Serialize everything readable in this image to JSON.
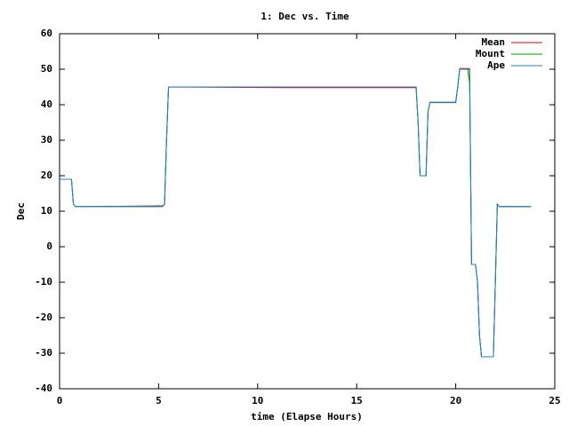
{
  "chart_data": {
    "type": "line",
    "title": "1: Dec vs. Time",
    "x_label": "time (Elapse Hours)",
    "y_label": "Dec",
    "x": [
      0,
      0.6,
      0.7,
      0.8,
      5.0,
      5.2,
      5.3,
      5.4,
      5.5,
      11.5,
      18.0,
      18.1,
      18.2,
      18.5,
      18.6,
      18.7,
      20.0,
      20.1,
      20.2,
      20.6,
      20.7,
      20.8,
      20.9,
      21.0,
      21.1,
      21.2,
      21.3,
      21.9,
      22.0,
      22.1,
      22.2,
      23.8
    ],
    "series": [
      {
        "name": "Mean",
        "color": "#e0000f",
        "values": [
          19,
          19,
          12,
          11.3,
          11.5,
          11.5,
          12,
          30,
          45,
          44.8,
          44.8,
          35,
          20,
          20,
          38,
          40.6,
          40.6,
          45,
          50.2,
          50.2,
          50.2,
          -5,
          -5,
          -5,
          -10,
          -25,
          -31,
          -31,
          -10,
          12,
          11.3,
          11.3
        ]
      },
      {
        "name": "Mount",
        "color": "#00a000",
        "values": [
          19,
          19,
          12,
          11.3,
          11.3,
          11.3,
          12,
          30,
          45,
          45,
          45,
          35,
          20,
          20,
          38,
          40.7,
          40.7,
          45,
          50,
          50,
          46,
          -5,
          -5,
          -5,
          -10,
          -25,
          -31,
          -31,
          -10,
          12,
          11.3,
          11.3
        ]
      },
      {
        "name": "Ape",
        "color": "#1f80c8",
        "values": [
          19,
          19,
          12,
          11.3,
          11.3,
          11.3,
          12,
          30,
          45,
          45,
          45,
          35,
          20,
          20,
          38,
          40.7,
          40.7,
          45,
          50,
          50,
          50,
          -5,
          -5,
          -5,
          -10,
          -25,
          -31,
          -31,
          -10,
          12,
          11.3,
          11.3
        ]
      }
    ],
    "xlim": [
      0,
      25
    ],
    "xticks": [
      0,
      5,
      10,
      15,
      20,
      25
    ],
    "ylim": [
      -40,
      60
    ],
    "yticks": [
      -40,
      -30,
      -20,
      -10,
      0,
      10,
      20,
      30,
      40,
      50,
      60
    ],
    "legend": "top-right"
  }
}
